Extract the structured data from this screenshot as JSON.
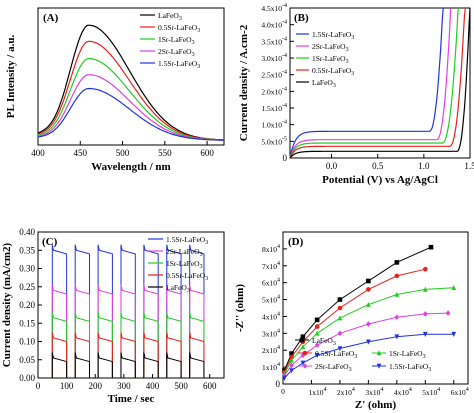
{
  "panels": {
    "a": "(A)",
    "b": "(B)",
    "c": "(C)",
    "d": "(D)"
  },
  "colors": {
    "LaFeO3": "#000000",
    "0.5Sr": "#e8201c",
    "1Sr": "#22cc22",
    "2Sr": "#e040e0",
    "1.5Sr": "#2233dd"
  },
  "chart_data": [
    {
      "type": "line",
      "panel": "(A)",
      "xlabel": "Wavelength / nm",
      "ylabel": "PL Intensity / a.u.",
      "xlim": [
        400,
        620
      ],
      "xticks": [
        "400",
        "450",
        "500",
        "550",
        "600"
      ],
      "legend_placement": "top-right",
      "legend": [
        "LaFeO3",
        "0.5Sr-LaFeO3",
        "1Sr-LaFeO3",
        "2Sr-LaFeO3",
        "1.5Sr-LaFeO3"
      ],
      "series": [
        {
          "name": "LaFeO3",
          "peak_x": 460,
          "peak": 1.0
        },
        {
          "name": "0.5Sr-LaFeO3",
          "peak_x": 460,
          "peak": 0.86
        },
        {
          "name": "1Sr-LaFeO3",
          "peak_x": 460,
          "peak": 0.71
        },
        {
          "name": "2Sr-LaFeO3",
          "peak_x": 460,
          "peak": 0.57
        },
        {
          "name": "1.5Sr-LaFeO3",
          "peak_x": 460,
          "peak": 0.45
        }
      ]
    },
    {
      "type": "line",
      "panel": "(B)",
      "xlabel": "Potential (V) vs Ag/AgCl",
      "ylabel": "Current density / A.cm-2",
      "xlim": [
        -0.45,
        1.5
      ],
      "ylim": [
        0,
        0.00045
      ],
      "xticks": [
        "0.0",
        "0.5",
        "1.0",
        "1.5"
      ],
      "yticks": [
        "0",
        "5.0x10-5",
        "1.0x10-4",
        "1.5x10-4",
        "2.0x10-4",
        "2.5x10-4",
        "3.0x10-4",
        "3.5x10-4",
        "4.0x10-4",
        "4.5x10-4"
      ],
      "legend_placement": "top-left",
      "legend": [
        "1.5Sr-LaFeO3",
        "2Sr-LaFeO3",
        "1Sr-LaFeO3",
        "0.5Sr-LaFeO3",
        "LaFeO3"
      ],
      "series": [
        {
          "name": "1.5Sr-LaFeO3",
          "onset": 1.06,
          "plateau": 8e-05,
          "end_x": 1.22
        },
        {
          "name": "2Sr-LaFeO3",
          "onset": 1.14,
          "plateau": 5.5e-05,
          "end_x": 1.3
        },
        {
          "name": "1Sr-LaFeO3",
          "onset": 1.2,
          "plateau": 4.5e-05,
          "end_x": 1.38
        },
        {
          "name": "0.5Sr-LaFeO3",
          "onset": 1.28,
          "plateau": 3.5e-05,
          "end_x": 1.45
        },
        {
          "name": "LaFeO3",
          "onset": 1.36,
          "plateau": 2e-05,
          "end_x": 1.5
        }
      ]
    },
    {
      "type": "line",
      "panel": "(C)",
      "xlabel": "Time / sec",
      "ylabel": "Current density (mA/cm2)",
      "xlim": [
        0,
        650
      ],
      "ylim": [
        0,
        0.4
      ],
      "xticks": [
        "0",
        "100",
        "200",
        "300",
        "400",
        "500",
        "600"
      ],
      "yticks": [
        "0.00",
        "0.05",
        "0.10",
        "0.15",
        "0.20",
        "0.25",
        "0.30",
        "0.35",
        "0.40"
      ],
      "legend_placement": "top-right",
      "legend": [
        "1.5Sr-LaFeO3",
        "2Sr-LaFeO3",
        "1Sr-LaFeO3",
        "0.5Sr-LaFeO3",
        "LaFeO3"
      ],
      "on_periods": [
        [
          50,
          100
        ],
        [
          130,
          180
        ],
        [
          210,
          260
        ],
        [
          290,
          340
        ],
        [
          370,
          420
        ],
        [
          450,
          500
        ],
        [
          530,
          580
        ]
      ],
      "series": [
        {
          "name": "1.5Sr-LaFeO3",
          "on": 0.34,
          "off": 0.0
        },
        {
          "name": "2Sr-LaFeO3",
          "on": 0.23,
          "off": 0.0
        },
        {
          "name": "1Sr-LaFeO3",
          "on": 0.155,
          "off": 0.0
        },
        {
          "name": "0.5Sr-LaFeO3",
          "on": 0.1,
          "off": 0.0
        },
        {
          "name": "LaFeO3",
          "on": 0.045,
          "off": 0.0
        }
      ]
    },
    {
      "type": "scatter",
      "panel": "(D)",
      "xlabel": "Z' (ohm)",
      "ylabel": "-Z'' (ohm)",
      "xlim": [
        0,
        65000
      ],
      "ylim": [
        0,
        90000
      ],
      "xticks": [
        "0",
        "1x10^4",
        "2x10^4",
        "3x10^4",
        "4x10^4",
        "5x10^4",
        "6x10^4"
      ],
      "yticks": [
        "0",
        "1x10^4",
        "2x10^4",
        "3x10^4",
        "4x10^4",
        "5x10^4",
        "6x10^4",
        "7x10^4",
        "8x10^4"
      ],
      "legend_placement": "bottom-right",
      "legend": [
        "LaFeO3",
        "0.5Sr-LaFeO3",
        "1Sr-LaFeO3",
        "2Sr-LaFeO3",
        "1.5Sr-LaFeO3"
      ],
      "series": [
        {
          "name": "LaFeO3",
          "marker": "square",
          "x": [
            500,
            3000,
            7000,
            12000,
            20000,
            30000,
            40000,
            52000
          ],
          "y": [
            8000,
            18000,
            28000,
            38000,
            50000,
            61000,
            72000,
            81000
          ]
        },
        {
          "name": "0.5Sr-LaFeO3",
          "marker": "circle",
          "x": [
            500,
            3000,
            7000,
            12000,
            20000,
            30000,
            40000,
            50000
          ],
          "y": [
            7000,
            16000,
            25000,
            34000,
            45000,
            56000,
            64000,
            68000
          ]
        },
        {
          "name": "1Sr-LaFeO3",
          "marker": "triangle",
          "x": [
            500,
            3000,
            7000,
            12000,
            20000,
            30000,
            40000,
            50000,
            60000
          ],
          "y": [
            6000,
            14000,
            22000,
            30000,
            39000,
            47000,
            53000,
            56000,
            57000
          ]
        },
        {
          "name": "2Sr-LaFeO3",
          "marker": "diamond",
          "x": [
            500,
            3000,
            7000,
            12000,
            20000,
            30000,
            40000,
            50000,
            58000
          ],
          "y": [
            5000,
            11000,
            17000,
            23000,
            30000,
            35500,
            39500,
            41500,
            42000
          ]
        },
        {
          "name": "1.5Sr-LaFeO3",
          "marker": "triangle-down",
          "x": [
            500,
            3000,
            7000,
            12000,
            20000,
            30000,
            40000,
            50000,
            60000
          ],
          "y": [
            3500,
            8000,
            12500,
            17000,
            21000,
            25000,
            28000,
            29500,
            29500
          ]
        }
      ]
    }
  ]
}
